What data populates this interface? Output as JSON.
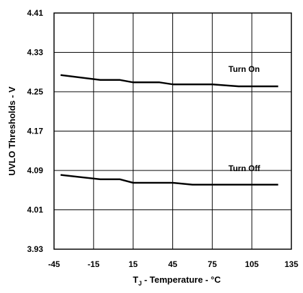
{
  "chart_data": {
    "type": "line",
    "xlabel": {
      "main": "T",
      "subscript": "J",
      "rest": " - Temperature - °C"
    },
    "ylabel": "UVLO Thresholds - V",
    "xlim": [
      -45,
      135
    ],
    "ylim": [
      3.93,
      4.41
    ],
    "x_ticks": [
      "-45",
      "-15",
      "15",
      "45",
      "75",
      "105",
      "135"
    ],
    "y_ticks": [
      "4.41",
      "4.33",
      "4.25",
      "4.17",
      "4.09",
      "4.01",
      "3.93"
    ],
    "grid": true,
    "series": [
      {
        "name": "Turn On",
        "x": [
          -40,
          -10,
          5,
          15,
          35,
          45,
          75,
          95,
          125
        ],
        "y": [
          4.284,
          4.274,
          4.274,
          4.269,
          4.269,
          4.265,
          4.265,
          4.261,
          4.261
        ]
      },
      {
        "name": "Turn Off",
        "x": [
          -40,
          -10,
          5,
          15,
          45,
          60,
          125
        ],
        "y": [
          4.081,
          4.072,
          4.072,
          4.065,
          4.065,
          4.061,
          4.061
        ]
      }
    ]
  }
}
